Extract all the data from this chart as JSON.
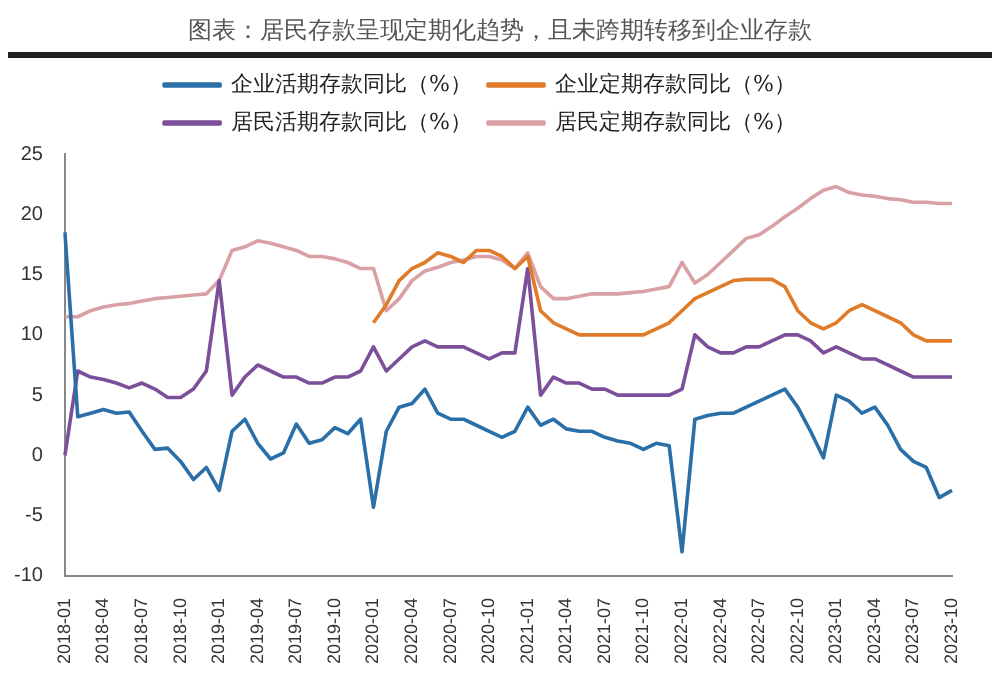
{
  "chart_data": {
    "type": "line",
    "title": "图表：居民存款呈现定期化趋势，且未跨期转移到企业存款",
    "categories": [
      "2018-01",
      null,
      null,
      "2018-04",
      null,
      null,
      "2018-07",
      null,
      null,
      "2018-10",
      null,
      null,
      "2019-01",
      null,
      null,
      "2019-04",
      null,
      null,
      "2019-07",
      null,
      null,
      "2019-10",
      null,
      null,
      "2020-01",
      null,
      null,
      "2020-04",
      null,
      null,
      "2020-07",
      null,
      null,
      "2020-10",
      null,
      null,
      "2021-01",
      null,
      null,
      "2021-04",
      null,
      null,
      "2021-07",
      null,
      null,
      "2021-10",
      null,
      null,
      "2022-01",
      null,
      null,
      "2022-04",
      null,
      null,
      "2022-07",
      null,
      null,
      "2022-10",
      null,
      null,
      "2023-01",
      null,
      null,
      "2023-04",
      null,
      null,
      "2023-07",
      null,
      null,
      "2023-10"
    ],
    "series": [
      {
        "name": "企业活期存款同比（%）",
        "color": "#2a6fa8",
        "values": [
          18.5,
          3.2,
          3.5,
          3.8,
          3.5,
          3.6,
          2,
          0.5,
          0.6,
          -0.5,
          -2,
          -1,
          -2.9,
          2,
          3,
          1,
          -0.3,
          0.2,
          2.6,
          1,
          1.3,
          2.3,
          1.8,
          3,
          -4.3,
          2,
          4,
          4.3,
          5.5,
          3.5,
          3,
          3,
          2.5,
          2,
          1.5,
          2,
          4,
          2.5,
          3,
          2.2,
          2,
          2,
          1.5,
          1.2,
          1,
          0.5,
          1,
          0.8,
          -8,
          3,
          3.3,
          3.5,
          3.5,
          4,
          4.5,
          5,
          5.5,
          4,
          2,
          -0.2,
          5,
          4.5,
          3.5,
          4,
          2.5,
          0.5,
          -0.5,
          -1,
          -3.5,
          -2.9
        ]
      },
      {
        "name": "企业定期存款同比（%）",
        "color": "#e07b2a",
        "values": [
          null,
          null,
          null,
          null,
          null,
          null,
          null,
          null,
          null,
          null,
          null,
          null,
          null,
          null,
          null,
          null,
          null,
          null,
          null,
          null,
          null,
          null,
          null,
          null,
          11,
          12.5,
          14.5,
          15.5,
          16,
          16.8,
          16.5,
          16,
          17,
          17,
          16.5,
          15.5,
          16.5,
          12,
          11,
          10.5,
          10,
          10,
          10,
          10,
          10,
          10,
          10.5,
          11,
          12,
          13,
          13.5,
          14,
          14.5,
          14.6,
          14.6,
          14.6,
          14,
          12,
          11,
          10.5,
          11,
          12,
          12.5,
          12,
          11.5,
          11,
          10,
          9.5,
          9.5,
          9.5
        ]
      },
      {
        "name": "居民活期存款同比（%）",
        "color": "#7b4f9a",
        "values": [
          0,
          7,
          6.5,
          6.3,
          6,
          5.6,
          6,
          5.5,
          4.8,
          4.8,
          5.5,
          7,
          14.5,
          5,
          6.5,
          7.5,
          7,
          6.5,
          6.5,
          6,
          6,
          6.5,
          6.5,
          7,
          9,
          7,
          8,
          9,
          9.5,
          9,
          9,
          9,
          8.5,
          8,
          8.5,
          8.5,
          15.5,
          5,
          6.5,
          6,
          6,
          5.5,
          5.5,
          5,
          5,
          5,
          5,
          5,
          5.5,
          10,
          9,
          8.5,
          8.5,
          9,
          9,
          9.5,
          10,
          10,
          9.5,
          8.5,
          9,
          8.5,
          8,
          8,
          7.5,
          7,
          6.5,
          6.5,
          6.5,
          6.5
        ]
      },
      {
        "name": "居民定期存款同比（%）",
        "color": "#d9a0a5",
        "values": [
          11.5,
          11.5,
          12,
          12.3,
          12.5,
          12.6,
          12.8,
          13,
          13.1,
          13.2,
          13.3,
          13.4,
          14.5,
          17,
          17.3,
          17.8,
          17.6,
          17.3,
          17,
          16.5,
          16.5,
          16.3,
          16,
          15.5,
          15.5,
          12,
          13,
          14.5,
          15.3,
          15.6,
          16,
          16.2,
          16.5,
          16.5,
          16.2,
          15.5,
          16.8,
          14,
          13,
          13,
          13.2,
          13.4,
          13.4,
          13.4,
          13.5,
          13.6,
          13.8,
          14,
          16,
          14.3,
          15,
          16,
          17,
          18,
          18.3,
          19,
          19.8,
          20.5,
          21.3,
          22,
          22.3,
          21.8,
          21.6,
          21.5,
          21.3,
          21.2,
          21,
          21,
          20.9,
          20.9
        ]
      }
    ],
    "ylim": [
      -10,
      25
    ],
    "yticks": [
      -10,
      -5,
      0,
      5,
      10,
      15,
      20,
      25
    ],
    "grid": false,
    "legend": "top",
    "marker": "none",
    "line_style": "solid"
  }
}
